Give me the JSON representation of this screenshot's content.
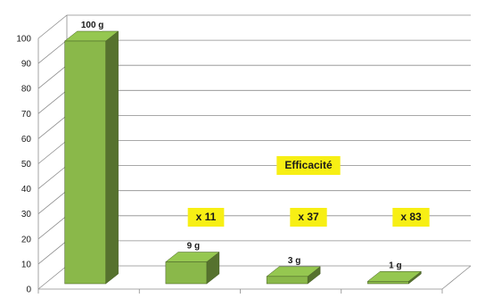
{
  "chart_data": {
    "type": "bar",
    "categories": [
      "",
      "",
      "",
      ""
    ],
    "values": [
      100,
      9,
      3,
      1
    ],
    "data_labels": [
      "100 g",
      "9 g",
      "3 g",
      "1 g"
    ],
    "ylim": [
      0,
      100
    ],
    "yticks": [
      0,
      10,
      20,
      30,
      40,
      50,
      60,
      70,
      80,
      90,
      100
    ],
    "grid": true,
    "style": "3d-column",
    "bar_color": "#8ab84a",
    "annotations": [
      {
        "text": "Efficacité",
        "background": "#f7ef14"
      },
      {
        "text": "x 11",
        "background": "#f7ef14"
      },
      {
        "text": "x 37",
        "background": "#f7ef14"
      },
      {
        "text": "x 83",
        "background": "#f7ef14"
      }
    ]
  }
}
